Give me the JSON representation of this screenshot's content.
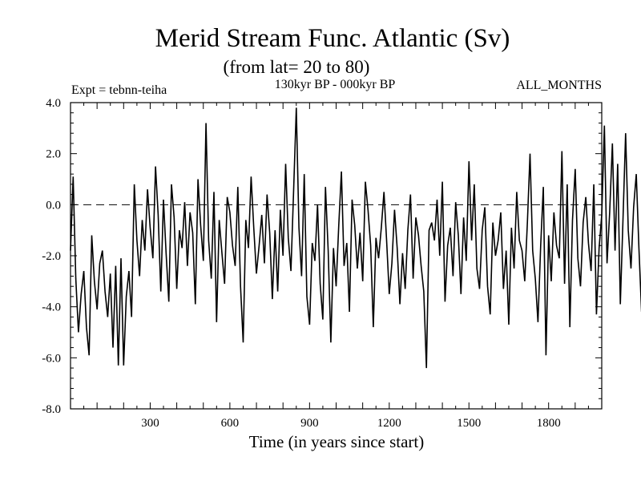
{
  "chart_data": {
    "type": "line",
    "title": "Merid Stream Func. Atlantic (Sv)",
    "subtitle": "(from lat= 20 to 80)",
    "period": "130kyr BP - 000kyr BP",
    "experiment": "Expt = tebnn-teiha",
    "months": "ALL_MONTHS",
    "xlabel": "Time (in years since start)",
    "ylabel": "",
    "xlim": [
      0,
      2000
    ],
    "ylim": [
      -8.0,
      4.0
    ],
    "xticks": [
      300,
      600,
      900,
      1200,
      1500,
      1800
    ],
    "xtick_labels": [
      "300",
      "600",
      "900",
      "1200",
      "1500",
      "1800"
    ],
    "yticks": [
      4.0,
      2.0,
      0.0,
      -2.0,
      -4.0,
      -6.0,
      -8.0
    ],
    "ytick_labels": [
      "4.0",
      "2.0",
      "0.0",
      "-2.0",
      "-4.0",
      "-6.0",
      "-8.0"
    ],
    "reference_line": {
      "y": 0.0,
      "style": "dashed"
    },
    "grid": false,
    "series": [
      {
        "name": "Merid Stream Func. Atlantic",
        "x_start": 0,
        "x_step": 10,
        "values": [
          -1.8,
          1.1,
          -2.9,
          -5.0,
          -3.5,
          -2.6,
          -4.8,
          -5.9,
          -1.2,
          -3.0,
          -4.1,
          -2.3,
          -1.8,
          -3.4,
          -4.4,
          -2.7,
          -5.6,
          -2.4,
          -6.3,
          -2.1,
          -6.3,
          -3.6,
          -2.6,
          -4.4,
          0.8,
          -1.4,
          -2.8,
          -0.6,
          -1.8,
          0.6,
          -0.9,
          -2.1,
          1.5,
          -0.4,
          -3.4,
          0.2,
          -1.9,
          -3.8,
          0.8,
          -0.5,
          -3.3,
          -1.0,
          -1.7,
          0.1,
          -2.4,
          -0.3,
          -1.1,
          -3.9,
          1.0,
          -0.8,
          -2.2,
          3.2,
          -1.4,
          -2.9,
          0.5,
          -4.6,
          -0.6,
          -1.9,
          -3.1,
          0.3,
          -0.3,
          -1.6,
          -2.4,
          0.7,
          -3.2,
          -5.4,
          -0.6,
          -1.7,
          1.1,
          -0.9,
          -2.7,
          -1.6,
          -0.4,
          -2.3,
          0.4,
          -1.1,
          -3.7,
          -1.0,
          -3.4,
          -0.2,
          -2.0,
          1.6,
          -1.3,
          -2.6,
          0.6,
          3.8,
          -0.9,
          -2.8,
          1.2,
          -3.6,
          -4.7,
          -1.5,
          -2.2,
          0.0,
          -3.1,
          -4.5,
          0.7,
          -1.8,
          -5.4,
          -1.7,
          -3.2,
          -0.8,
          1.3,
          -2.4,
          -1.5,
          -4.2,
          0.2,
          -0.8,
          -2.5,
          -1.1,
          -3.0,
          0.9,
          -0.2,
          -1.6,
          -4.8,
          -1.3,
          -2.1,
          -0.9,
          0.5,
          -1.4,
          -3.5,
          -2.3,
          -0.2,
          -1.7,
          -3.9,
          -1.9,
          -3.3,
          -1.0,
          0.4,
          -2.9,
          -0.5,
          -1.2,
          -2.4,
          -3.4,
          -6.4,
          -1.0,
          -0.7,
          -1.4,
          0.2,
          -2.0,
          0.9,
          -3.8,
          -1.6,
          -0.9,
          -2.8,
          0.1,
          -1.2,
          -3.5,
          -0.5,
          -2.2,
          1.7,
          -1.4,
          0.8,
          -2.5,
          -3.3,
          -1.0,
          -0.1,
          -3.2,
          -4.3,
          -0.7,
          -2.0,
          -1.4,
          -0.3,
          -3.3,
          -1.8,
          -4.7,
          -0.9,
          -2.5,
          0.5,
          -1.4,
          -1.8,
          -3.0,
          -0.7,
          2.0,
          -1.8,
          -2.9,
          -4.6,
          -1.6,
          0.7,
          -5.9,
          -1.2,
          -3.0,
          -0.3,
          -1.6,
          -2.1,
          2.1,
          -3.1,
          0.8,
          -4.8,
          -0.6,
          1.4,
          -2.1,
          -3.2,
          -0.7,
          0.3,
          -1.5,
          -2.6,
          0.8,
          -4.3,
          -1.7,
          -0.4,
          3.1,
          -2.3,
          -0.3,
          2.4,
          -1.8,
          1.6,
          -3.9,
          -0.6,
          2.8,
          -1.0,
          -2.5,
          -0.1,
          1.2,
          -1.7,
          -4.2,
          -0.8,
          -2.9,
          0.6,
          -1.3,
          0.4,
          -3.8,
          -1.5,
          0.1,
          1.0,
          -2.7,
          -5.6,
          -0.4,
          -2.0,
          1.1,
          -1.2,
          2.9,
          -0.7,
          -2.4,
          0.9,
          -2.9,
          0.4,
          -1.8,
          -0.1,
          -1.4,
          2.1,
          -0.5,
          0.6,
          -2.0,
          1.3,
          -0.3,
          -1.2,
          0.7,
          2.3,
          -1.7,
          -3.2,
          0.0,
          -4.7,
          -0.7,
          1.0,
          -2.0,
          -0.3,
          -4.4,
          -1.2,
          -3.8,
          0.9,
          -2.7,
          -0.4,
          3.1,
          -1.3,
          1.9,
          -4.1,
          -2.5,
          2.7,
          0.7,
          -1.5,
          -3.2,
          -0.4,
          -1.6,
          -2.7,
          -4.3,
          -1.8,
          -0.2,
          -3.4,
          -4.0,
          -2.1,
          -4.8,
          -2.8,
          -1.6,
          -3.4,
          -4.3,
          -3.0,
          -4.1,
          -6.5,
          -2.1,
          -0.8,
          -3.6,
          -1.7,
          -5.3,
          -2.6,
          -0.9,
          -2.2,
          -4.8,
          -1.3,
          0.2,
          -2.0,
          -0.6,
          -2.9,
          -1.5,
          0.5,
          -2.3,
          -4.2,
          -1.8,
          -0.4,
          -3.1,
          -1.3,
          -0.5,
          -2.6,
          -1.9,
          -3.7,
          -0.9,
          -1.6,
          1.4,
          -2.1,
          -0.7,
          -3.0,
          -1.1,
          -2.2,
          0.2,
          -1.5,
          -3.5,
          -0.6,
          -2.2,
          0.8,
          -1.4,
          -0.3,
          -3.1,
          -1.1,
          -2.0,
          1.5,
          -0.5,
          -2.7,
          -5.9,
          -0.8,
          -1.7,
          -0.2,
          -4.7,
          -1.5,
          0.5,
          -2.4,
          -1.3,
          0.9,
          -1.9,
          -3.3,
          -0.7,
          -2.2,
          0.3,
          -1.1,
          3.6,
          -1.6,
          2.6,
          -0.3,
          -4.5,
          -1.2,
          0.6,
          -5.0,
          -1.8,
          -2.9,
          0.1,
          -3.8,
          -1.0,
          0.5,
          -1.4,
          -2.5,
          0.7,
          -4.0,
          -1.6,
          1.2,
          -3.6,
          -0.8,
          -2.7,
          1.6,
          -5.3,
          0.3,
          -1.4,
          -2.4,
          3.1,
          -0.5,
          -1.9,
          0.8,
          -2.8,
          -0.6,
          2.3,
          -1.5,
          -3.2,
          -0.1,
          1.4,
          -2.2,
          -4.5,
          0.2,
          -1.3,
          0.6,
          -2.5,
          3.8,
          -0.7,
          -2.2,
          1.8,
          -5.6,
          -1.4,
          0.9,
          -2.8,
          -1.0,
          0.4,
          -1.9,
          1.1,
          -3.1,
          -0.6,
          -1.5,
          0.2,
          -2.6,
          -1.1,
          0.5,
          -3.2,
          -1.8,
          0.3,
          -4.2,
          -0.9,
          1.2,
          -2.3,
          -1.5,
          0.7,
          -1.2,
          -2.9,
          0.4,
          -0.8,
          1.5,
          -2.0,
          -1.3,
          -3.4,
          0.1,
          -1.7,
          -0.4,
          -2.2
        ]
      }
    ]
  }
}
